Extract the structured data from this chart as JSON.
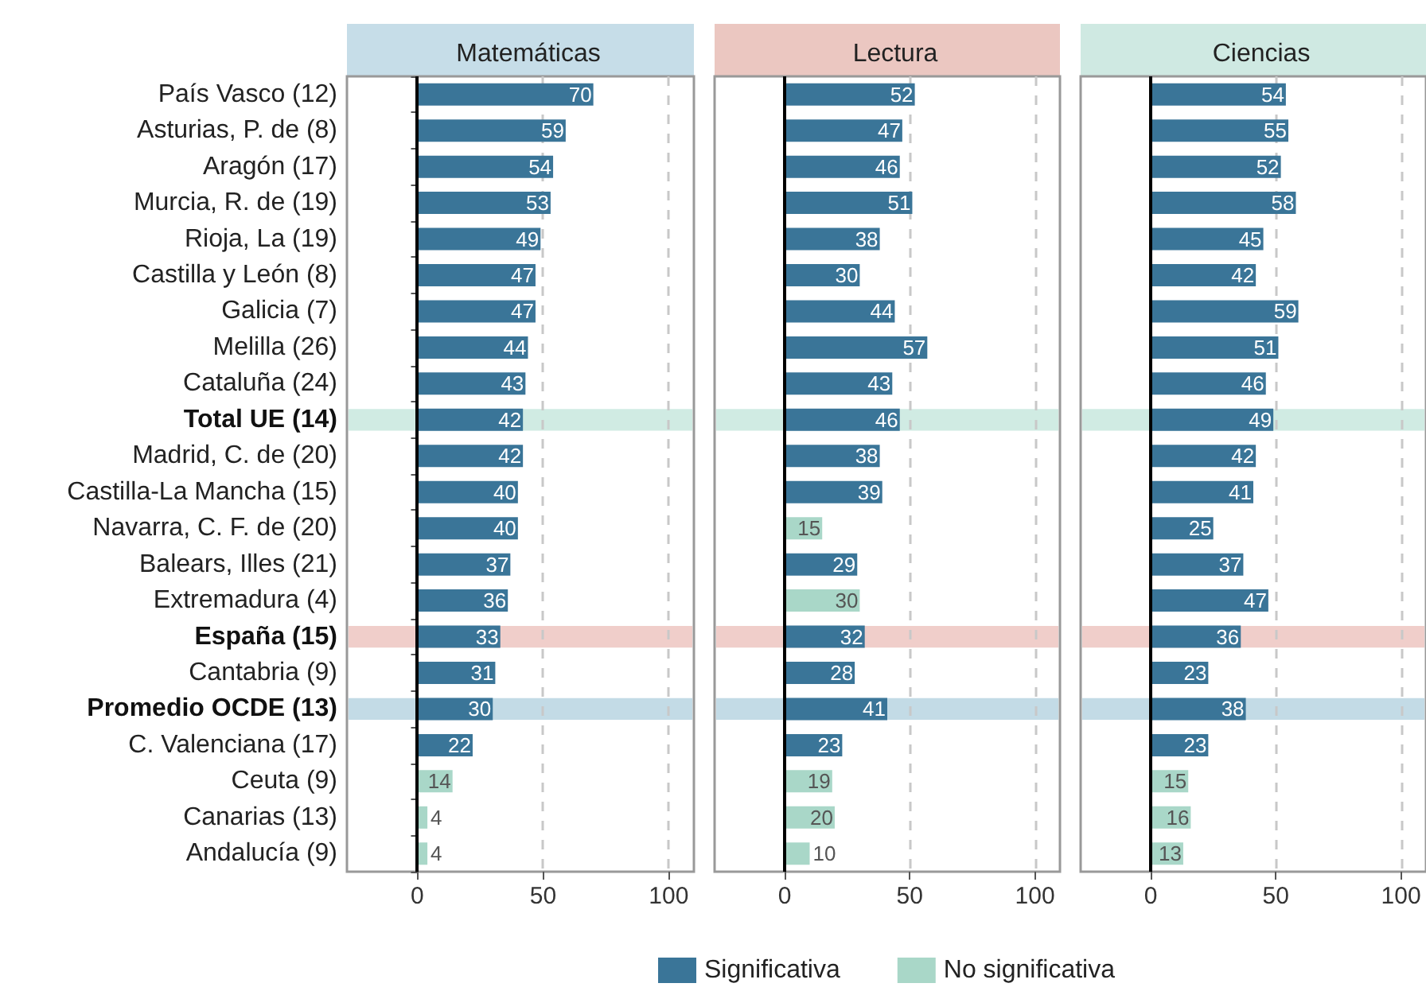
{
  "chart_data": [
    {
      "type": "bar",
      "orientation": "horizontal",
      "stacked": true,
      "title": "Matemáticas",
      "categories": [
        "País Vasco (12)",
        "Asturias, P. de (8)",
        "Aragón (17)",
        "Murcia, R. de (19)",
        "Rioja, La (19)",
        "Castilla y León (8)",
        "Galicia (7)",
        "Melilla (26)",
        "Cataluña (24)",
        "Total UE (14)",
        "Madrid, C. de (20)",
        "Castilla-La Mancha (15)",
        "Navarra, C. F. de (20)",
        "Balears, Illes (21)",
        "Extremadura (4)",
        "España (15)",
        "Cantabria (9)",
        "Promedio OCDE (13)",
        "C. Valenciana (17)",
        "Ceuta (9)",
        "Canarias (13)",
        "Andalucía (9)"
      ],
      "series": [
        {
          "color": "#3a7598",
          "values": [
            70,
            59,
            54,
            53,
            49,
            47,
            47,
            44,
            43,
            42,
            42,
            40,
            40,
            37,
            36,
            33,
            31,
            30,
            22,
            null,
            null,
            null
          ]
        },
        {
          "color": "#a9d7c8",
          "values": [
            null,
            null,
            null,
            null,
            null,
            null,
            null,
            null,
            null,
            null,
            null,
            null,
            null,
            null,
            null,
            null,
            null,
            null,
            null,
            14,
            4,
            4
          ]
        }
      ],
      "xlim": [
        -28,
        110
      ],
      "xticks": [
        0,
        50,
        100
      ],
      "grid": "x",
      "data_labels": true,
      "legend": false,
      "ref_lines": [
        {
          "axis": "x",
          "value": 0,
          "color": "#000000"
        }
      ],
      "bands": [
        {
          "axis": "y",
          "from": "Total UE (14)",
          "to": "Total UE (14)",
          "color": "#d0ebe3"
        },
        {
          "axis": "y",
          "from": "España (15)",
          "to": "España (15)",
          "color": "#f0ceca"
        },
        {
          "axis": "y",
          "from": "Promedio OCDE (13)",
          "to": "Promedio OCDE (13)",
          "color": "#c3dbe6"
        }
      ]
    },
    {
      "type": "bar",
      "orientation": "horizontal",
      "stacked": true,
      "title": "Lectura",
      "categories": [
        "País Vasco (12)",
        "Asturias, P. de (8)",
        "Aragón (17)",
        "Murcia, R. de (19)",
        "Rioja, La (19)",
        "Castilla y León (8)",
        "Galicia (7)",
        "Melilla (26)",
        "Cataluña (24)",
        "Total UE (14)",
        "Madrid, C. de (20)",
        "Castilla-La Mancha (15)",
        "Navarra, C. F. de (20)",
        "Balears, Illes (21)",
        "Extremadura (4)",
        "España (15)",
        "Cantabria (9)",
        "Promedio OCDE (13)",
        "C. Valenciana (17)",
        "Ceuta (9)",
        "Canarias (13)",
        "Andalucía (9)"
      ],
      "series": [
        {
          "name": "Significativa",
          "color": "#3a7598",
          "values": [
            52,
            47,
            46,
            51,
            38,
            30,
            44,
            57,
            43,
            46,
            38,
            39,
            null,
            29,
            null,
            32,
            28,
            41,
            23,
            null,
            null,
            null
          ]
        },
        {
          "name": "No significativa",
          "color": "#a9d7c8",
          "values": [
            null,
            null,
            null,
            null,
            null,
            null,
            null,
            null,
            null,
            null,
            null,
            null,
            15,
            null,
            30,
            null,
            null,
            null,
            null,
            19,
            20,
            10
          ]
        }
      ],
      "xlim": [
        -28,
        110
      ],
      "xticks": [
        0,
        50,
        100
      ],
      "grid": "x",
      "data_labels": true,
      "legend": "bottom",
      "tick_labels": "x",
      "ref_lines": [
        {
          "axis": "x",
          "value": 0,
          "color": "#000000"
        }
      ],
      "bands": [
        {
          "axis": "y",
          "from": "Total UE (14)",
          "to": "Total UE (14)",
          "color": "#d0ebe3"
        },
        {
          "axis": "y",
          "from": "España (15)",
          "to": "España (15)",
          "color": "#f0ceca"
        },
        {
          "axis": "y",
          "from": "Promedio OCDE (13)",
          "to": "Promedio OCDE (13)",
          "color": "#c3dbe6"
        }
      ]
    },
    {
      "type": "bar",
      "orientation": "horizontal",
      "stacked": true,
      "title": "Ciencias",
      "categories": [
        "País Vasco (12)",
        "Asturias, P. de (8)",
        "Aragón (17)",
        "Murcia, R. de (19)",
        "Rioja, La (19)",
        "Castilla y León (8)",
        "Galicia (7)",
        "Melilla (26)",
        "Cataluña (24)",
        "Total UE (14)",
        "Madrid, C. de (20)",
        "Castilla-La Mancha (15)",
        "Navarra, C. F. de (20)",
        "Balears, Illes (21)",
        "Extremadura (4)",
        "España (15)",
        "Cantabria (9)",
        "Promedio OCDE (13)",
        "C. Valenciana (17)",
        "Ceuta (9)",
        "Canarias (13)",
        "Andalucía (9)"
      ],
      "series": [
        {
          "color": "#3a7598",
          "values": [
            54,
            55,
            52,
            58,
            45,
            42,
            59,
            51,
            46,
            49,
            42,
            41,
            25,
            37,
            47,
            36,
            23,
            38,
            23,
            null,
            null,
            null
          ]
        },
        {
          "color": "#a9d7c8",
          "values": [
            null,
            null,
            null,
            null,
            null,
            null,
            null,
            null,
            null,
            null,
            null,
            null,
            null,
            null,
            null,
            null,
            null,
            null,
            null,
            15,
            16,
            13
          ]
        }
      ],
      "xlim": [
        -28,
        110
      ],
      "xticks": [
        0,
        50,
        100
      ],
      "grid": "x",
      "data_labels": true,
      "legend": false,
      "tick_labels": "x",
      "ref_lines": [
        {
          "axis": "x",
          "value": 0,
          "color": "#000000"
        }
      ],
      "bands": [
        {
          "axis": "y",
          "from": "Total UE (14)",
          "to": "Total UE (14)",
          "color": "#d0ebe3"
        },
        {
          "axis": "y",
          "from": "España (15)",
          "to": "España (15)",
          "color": "#f0ceca"
        },
        {
          "axis": "y",
          "from": "Promedio OCDE (13)",
          "to": "Promedio OCDE (13)",
          "color": "#c3dbe6"
        }
      ]
    }
  ]
}
